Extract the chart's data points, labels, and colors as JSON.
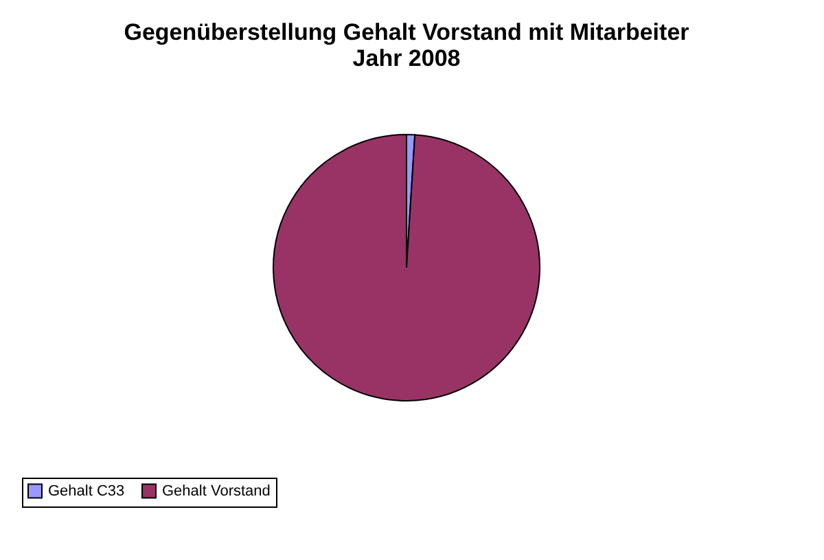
{
  "chart_data": {
    "type": "pie",
    "title": "Gegenüberstellung Gehalt Vorstand mit Mitarbeiter\nJahr 2008",
    "categories": [
      "Gehalt C33",
      "Gehalt Vorstand"
    ],
    "values": [
      1,
      99
    ],
    "colors": [
      "#9999ff",
      "#993366"
    ],
    "legend": "bottom"
  }
}
